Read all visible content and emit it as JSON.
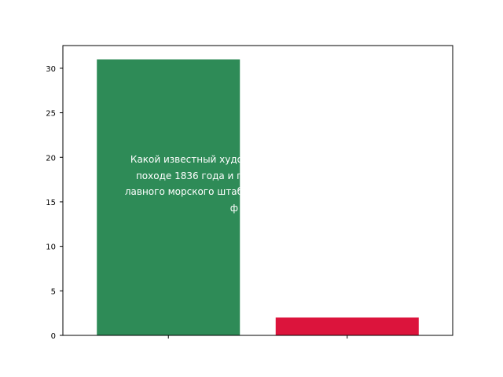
{
  "chart_data": {
    "type": "bar",
    "title": "",
    "xlabel": "",
    "ylabel": "",
    "categories": [
      "",
      ""
    ],
    "values": [
      31,
      2
    ],
    "colors": [
      "#2e8b57",
      "#dc143c"
    ],
    "ylim": [
      0,
      32.55
    ],
    "yticks": [
      0,
      5,
      10,
      15,
      20,
      25,
      30
    ],
    "grid": false,
    "bar_label": {
      "bar_index": 0,
      "lines": [
        "Какой известный худо",
        "походе 1836 года и п",
        "лавного морского штаб",
        "ф"
      ]
    }
  }
}
